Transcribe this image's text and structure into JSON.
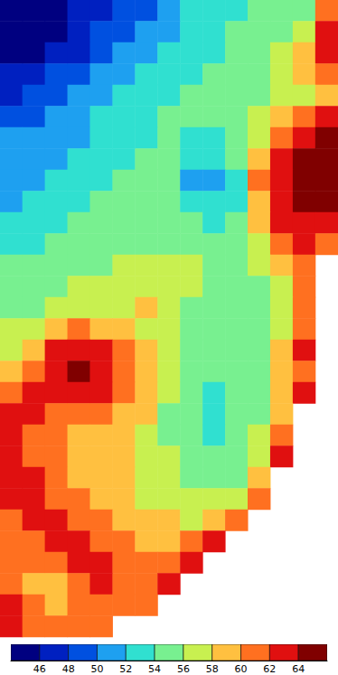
{
  "chart_data": {
    "type": "heatmap",
    "tick_labels": false,
    "cells": [
      [
        44,
        44,
        45,
        46,
        47,
        48,
        49,
        51,
        53,
        53,
        53,
        54,
        55,
        55,
        61
      ],
      [
        44,
        44,
        45,
        47,
        48,
        49,
        50,
        51,
        52,
        53,
        54,
        55,
        55,
        57,
        63
      ],
      [
        45,
        45,
        46,
        47,
        49,
        50,
        51,
        52,
        53,
        53,
        54,
        55,
        56,
        59,
        63
      ],
      [
        46,
        47,
        48,
        49,
        50,
        51,
        52,
        53,
        53,
        54,
        55,
        55,
        56,
        58,
        61
      ],
      [
        47,
        48,
        49,
        50,
        51,
        52,
        53,
        53,
        54,
        55,
        55,
        55,
        56,
        57,
        59
      ],
      [
        49,
        49,
        50,
        51,
        52,
        53,
        53,
        54,
        54,
        55,
        55,
        56,
        58,
        61,
        63
      ],
      [
        50,
        50,
        51,
        51,
        52,
        53,
        53,
        54,
        53,
        53,
        54,
        57,
        61,
        63,
        65
      ],
      [
        50,
        51,
        51,
        52,
        53,
        53,
        54,
        54,
        52,
        52,
        54,
        59,
        63,
        65,
        65
      ],
      [
        51,
        51,
        52,
        53,
        53,
        54,
        55,
        54,
        51,
        51,
        53,
        60,
        63,
        65,
        65
      ],
      [
        51,
        52,
        53,
        53,
        54,
        55,
        55,
        54,
        52,
        52,
        53,
        59,
        63,
        64,
        65
      ],
      [
        52,
        53,
        53,
        54,
        54,
        55,
        55,
        55,
        54,
        53,
        54,
        58,
        62,
        63,
        63
      ],
      [
        53,
        53,
        54,
        54,
        55,
        55,
        55,
        55,
        55,
        54,
        55,
        57,
        61,
        62,
        61
      ],
      [
        54,
        54,
        55,
        55,
        55,
        56,
        57,
        57,
        56,
        55,
        55,
        56,
        58,
        61,
        null
      ],
      [
        54,
        55,
        55,
        56,
        56,
        57,
        57,
        57,
        56,
        55,
        55,
        55,
        57,
        61,
        null
      ],
      [
        55,
        55,
        56,
        57,
        57,
        57,
        58,
        57,
        55,
        55,
        55,
        55,
        57,
        61,
        null
      ],
      [
        56,
        57,
        59,
        60,
        59,
        58,
        57,
        56,
        55,
        55,
        55,
        55,
        57,
        61,
        null
      ],
      [
        57,
        59,
        62,
        63,
        62,
        60,
        58,
        56,
        55,
        54,
        54,
        55,
        58,
        62,
        null
      ],
      [
        59,
        61,
        63,
        65,
        63,
        61,
        58,
        56,
        54,
        54,
        54,
        55,
        58,
        61,
        null
      ],
      [
        61,
        63,
        63,
        63,
        62,
        60,
        58,
        56,
        54,
        53,
        54,
        55,
        59,
        62,
        null
      ],
      [
        62,
        62,
        61,
        61,
        60,
        59,
        58,
        55,
        54,
        53,
        54,
        55,
        59,
        null,
        null
      ],
      [
        62,
        61,
        60,
        59,
        59,
        58,
        57,
        55,
        54,
        53,
        54,
        56,
        61,
        null,
        null
      ],
      [
        63,
        61,
        60,
        59,
        58,
        58,
        57,
        56,
        55,
        54,
        55,
        57,
        62,
        null,
        null
      ],
      [
        63,
        62,
        60,
        59,
        58,
        58,
        57,
        56,
        55,
        55,
        55,
        58,
        null,
        null,
        null
      ],
      [
        63,
        63,
        61,
        60,
        59,
        58,
        57,
        56,
        56,
        56,
        57,
        60,
        null,
        null,
        null
      ],
      [
        61,
        62,
        62,
        61,
        60,
        59,
        58,
        58,
        57,
        58,
        61,
        null,
        null,
        null,
        null
      ],
      [
        60,
        61,
        63,
        63,
        61,
        60,
        59,
        59,
        60,
        62,
        null,
        null,
        null,
        null,
        null
      ],
      [
        60,
        60,
        61,
        62,
        62,
        61,
        60,
        61,
        62,
        null,
        null,
        null,
        null,
        null,
        null
      ],
      [
        61,
        59,
        59,
        61,
        62,
        61,
        61,
        63,
        null,
        null,
        null,
        null,
        null,
        null,
        null
      ],
      [
        62,
        60,
        59,
        60,
        61,
        61,
        61,
        null,
        null,
        null,
        null,
        null,
        null,
        null,
        null
      ],
      [
        62,
        61,
        60,
        60,
        61,
        null,
        null,
        null,
        null,
        null,
        null,
        null,
        null,
        null,
        null
      ]
    ],
    "colorbar": {
      "range": [
        44,
        66
      ],
      "ticks": [
        46,
        48,
        50,
        52,
        54,
        56,
        58,
        60,
        62,
        64
      ],
      "colors": [
        "#000080",
        "#0020c0",
        "#0050e0",
        "#1ea0f0",
        "#30e0d0",
        "#78f090",
        "#c8f050",
        "#ffc040",
        "#ff7020",
        "#e01010",
        "#800000"
      ]
    }
  }
}
